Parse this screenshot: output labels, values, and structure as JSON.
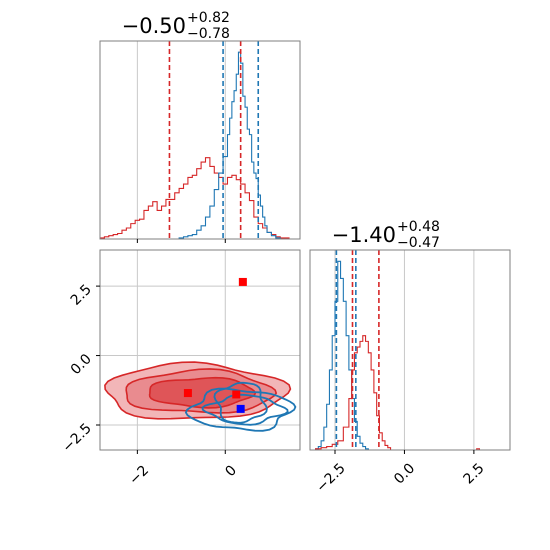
{
  "colors": {
    "series_red": "#d62728",
    "series_blue": "#1f77b4",
    "marker_red": "#ff0000",
    "marker_blue": "#0000ff",
    "grid": "#c8c8c8",
    "frame": "#7f7f7f",
    "text": "#000000"
  },
  "chart_data": [
    {
      "panel": "marginal-x",
      "type": "histogram",
      "title": "−0.50",
      "title_upper": "+0.82",
      "title_lower": "−0.78",
      "xlim": [
        -2.85,
        1.7
      ],
      "grid": true,
      "series": [
        {
          "color": "series_red",
          "bin_edges": [
            -2.85,
            -2.75,
            -2.65,
            -2.55,
            -2.45,
            -2.35,
            -2.25,
            -2.15,
            -2.05,
            -1.95,
            -1.85,
            -1.75,
            -1.65,
            -1.55,
            -1.45,
            -1.35,
            -1.25,
            -1.15,
            -1.05,
            -0.95,
            -0.85,
            -0.75,
            -0.65,
            -0.55,
            -0.45,
            -0.35,
            -0.25,
            -0.15,
            -0.05,
            0.05,
            0.15,
            0.25,
            0.35,
            0.45,
            0.55,
            0.65,
            0.75,
            0.85,
            0.95,
            1.05,
            1.15,
            1.25,
            1.35,
            1.45
          ],
          "counts": [
            1,
            2,
            3,
            4,
            5,
            8,
            10,
            14,
            17,
            18,
            26,
            30,
            34,
            26,
            30,
            36,
            36,
            42,
            46,
            50,
            56,
            58,
            64,
            70,
            74,
            66,
            60,
            56,
            50,
            56,
            58,
            54,
            50,
            42,
            35,
            20,
            14,
            10,
            6,
            4,
            2,
            1,
            1
          ]
        },
        {
          "color": "series_blue",
          "bin_edges": [
            -1.05,
            -0.95,
            -0.85,
            -0.75,
            -0.65,
            -0.55,
            -0.45,
            -0.35,
            -0.25,
            -0.15,
            -0.05,
            0.05,
            0.1,
            0.15,
            0.2,
            0.25,
            0.3,
            0.35,
            0.4,
            0.45,
            0.5,
            0.55,
            0.6,
            0.65,
            0.7,
            0.75,
            0.8,
            0.85,
            0.9,
            0.95,
            1.05,
            1.15,
            1.25
          ],
          "counts": [
            1,
            2,
            3,
            4,
            8,
            12,
            20,
            30,
            45,
            60,
            75,
            95,
            110,
            125,
            135,
            150,
            170,
            160,
            130,
            120,
            100,
            95,
            70,
            60,
            55,
            40,
            30,
            20,
            12,
            6,
            3,
            1
          ]
        }
      ],
      "quantile_lines": [
        {
          "color": "series_red",
          "x": -1.27
        },
        {
          "color": "series_red",
          "x": 0.35
        },
        {
          "color": "series_blue",
          "x": -0.05
        },
        {
          "color": "series_blue",
          "x": 0.75
        }
      ],
      "xticks": [
        -2,
        0
      ],
      "xtick_labels": [],
      "yticks": [],
      "ytick_labels": []
    },
    {
      "panel": "joint",
      "type": "contour",
      "xlim": [
        -2.85,
        1.7
      ],
      "ylim": [
        -3.4,
        3.8
      ],
      "grid": true,
      "xticks": [
        -2,
        0
      ],
      "xtick_labels": [
        "−2",
        "0"
      ],
      "yticks": [
        -2.5,
        0.0,
        2.5
      ],
      "ytick_labels": [
        "−2.5",
        "0.0",
        "2.5"
      ],
      "red_contours": [
        {
          "level": "outer",
          "x": -0.7,
          "y": -1.35,
          "rx": 2.05,
          "ry": 1.05,
          "fill": "#f2b6b8"
        },
        {
          "level": "middle",
          "x": -0.6,
          "y": -1.35,
          "rx": 1.7,
          "ry": 0.8,
          "fill": "#e98b8f"
        },
        {
          "level": "inner",
          "x": -0.55,
          "y": -1.35,
          "rx": 1.2,
          "ry": 0.55,
          "fill": "#df5558"
        }
      ],
      "blue_contours": [
        {
          "x": 0.35,
          "y": -1.95,
          "rx": 1.15,
          "ry": 0.72
        },
        {
          "x": 0.45,
          "y": -1.95,
          "rx": 0.85,
          "ry": 0.5
        },
        {
          "x": 0.35,
          "y": -1.7,
          "rx": 0.55,
          "ry": 0.72
        }
      ],
      "markers": [
        {
          "color": "marker_red",
          "x": 0.4,
          "y": 2.65
        },
        {
          "color": "marker_red",
          "x": -0.85,
          "y": -1.35
        },
        {
          "color": "marker_red",
          "x": 0.25,
          "y": -1.4
        },
        {
          "color": "marker_blue",
          "x": 0.35,
          "y": -1.92
        }
      ]
    },
    {
      "panel": "marginal-y",
      "type": "histogram",
      "title": "−1.40",
      "title_upper": "+0.48",
      "title_lower": "−0.47",
      "xlim": [
        -3.4,
        3.8
      ],
      "grid": true,
      "series": [
        {
          "color": "series_blue",
          "bin_edges": [
            -3.2,
            -3.1,
            -3.0,
            -2.9,
            -2.8,
            -2.7,
            -2.6,
            -2.5,
            -2.4,
            -2.3,
            -2.2,
            -2.1,
            -2.0,
            -1.9,
            -1.8,
            -1.7,
            -1.6,
            -1.5,
            -1.4,
            -1.3
          ],
          "counts": [
            1,
            3,
            8,
            20,
            40,
            70,
            100,
            130,
            165,
            150,
            130,
            100,
            70,
            45,
            25,
            12,
            6,
            3,
            1
          ]
        },
        {
          "color": "series_red",
          "bin_edges": [
            -3.2,
            -3.0,
            -2.8,
            -2.6,
            -2.4,
            -2.2,
            -2.0,
            -1.9,
            -1.8,
            -1.7,
            -1.6,
            -1.5,
            -1.4,
            -1.3,
            -1.2,
            -1.1,
            -1.0,
            -0.9,
            -0.8,
            -0.7,
            -0.6,
            -0.5,
            2.6,
            2.7,
            2.8
          ],
          "counts": [
            1,
            2,
            3,
            5,
            8,
            20,
            45,
            70,
            85,
            90,
            95,
            100,
            95,
            85,
            70,
            50,
            30,
            15,
            8,
            4,
            2,
            0,
            1,
            0
          ]
        }
      ],
      "quantile_lines": [
        {
          "color": "series_blue",
          "x": -2.45
        },
        {
          "color": "series_blue",
          "x": -1.75
        },
        {
          "color": "series_red",
          "x": -1.87
        },
        {
          "color": "series_red",
          "x": -0.92
        }
      ],
      "xticks": [
        -2.5,
        0.0,
        2.5
      ],
      "xtick_labels": [
        "−2.5",
        "0.0",
        "2.5"
      ],
      "yticks": [],
      "ytick_labels": []
    }
  ]
}
